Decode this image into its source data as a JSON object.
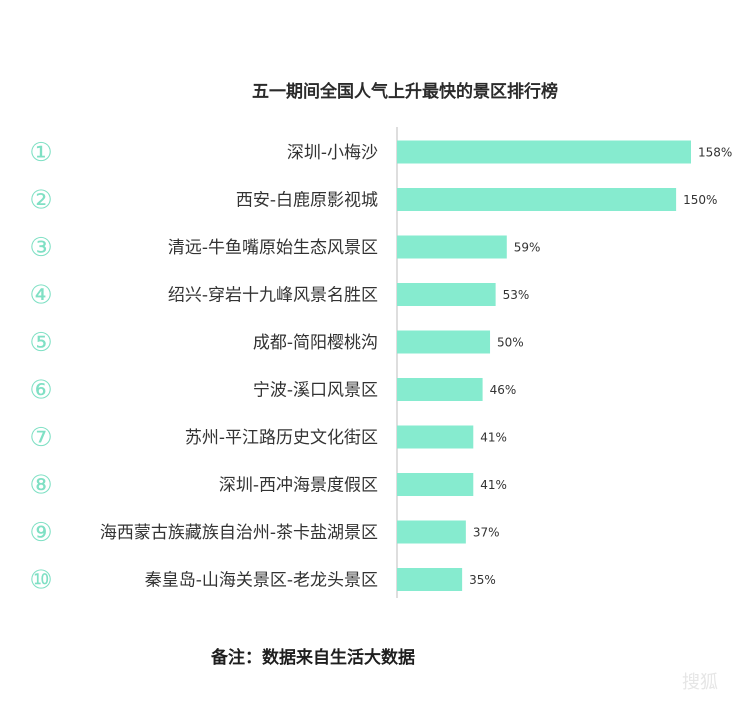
{
  "chart_data": {
    "type": "bar",
    "orientation": "horizontal",
    "title": "五一期间全国人气上升最快的景区排行榜",
    "ranks": [
      "①",
      "②",
      "③",
      "④",
      "⑤",
      "⑥",
      "⑦",
      "⑧",
      "⑨",
      "⑩"
    ],
    "categories": [
      "深圳-小梅沙",
      "西安-白鹿原影视城",
      "清远-牛鱼嘴原始生态风景区",
      "绍兴-穿岩十九峰风景名胜区",
      "成都-简阳樱桃沟",
      "宁波-溪口风景区",
      "苏州-平江路历史文化街区",
      "深圳-西冲海景度假区",
      "海西蒙古族藏族自治州-茶卡盐湖景区",
      "秦皇岛-山海关景区-老龙头景区"
    ],
    "values": [
      158,
      150,
      59,
      53,
      50,
      46,
      41,
      41,
      37,
      35
    ],
    "value_labels": [
      "158%",
      "150%",
      "59%",
      "53%",
      "50%",
      "46%",
      "41%",
      "41%",
      "37%",
      "35%"
    ],
    "unit": "%",
    "xlim": [
      0,
      160
    ],
    "bar_color": "#86ebcf",
    "grid": false,
    "note": "备注：数据来自生活大数据"
  },
  "colors": {
    "bar": "#86ebcf",
    "rank": "#7fe0c4",
    "axis": "#bdbdbd"
  }
}
